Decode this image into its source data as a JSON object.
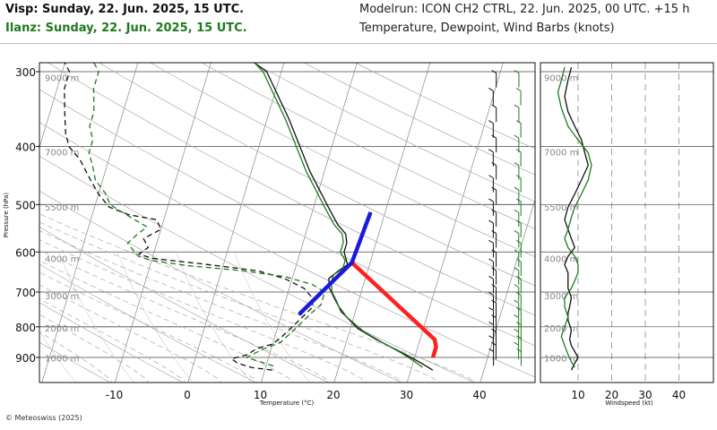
{
  "header": {
    "station1": "Visp: Sunday, 22. Jun. 2025, 15 UTC.",
    "station2": "Ilanz: Sunday, 22. Jun. 2025, 15 UTC.",
    "modelrun": "Modelrun: ICON CH2 CTRL, 22. Jun. 2025, 00 UTC. +15 h",
    "subtitle": "Temperature, Dewpoint, Wind Barbs (knots)"
  },
  "footer": {
    "copyright": "© Meteoswiss (2025)"
  },
  "colors": {
    "station1": "#111111",
    "station2": "#1e7a1e",
    "hodo_red": "#ff2020",
    "hodo_blue": "#1a1adc",
    "grid": "#999999"
  },
  "chart_data": [
    {
      "type": "line",
      "subtype": "skew-t",
      "xlabel": "Temperature (°C)",
      "ylabel": "Pressure (hPa)",
      "x_ticks": [
        "-10",
        "0",
        "10",
        "20",
        "30",
        "40"
      ],
      "x_tick_values": [
        -10,
        0,
        10,
        20,
        30,
        40
      ],
      "y_ticks": [
        "300",
        "400",
        "500",
        "600",
        "700",
        "800",
        "900"
      ],
      "y_tick_values": [
        300,
        400,
        500,
        600,
        700,
        800,
        900
      ],
      "altitude_labels": [
        "9000 m",
        "7000 m",
        "5500 m",
        "4000 m",
        "3000 m",
        "2000 m",
        "1000 m"
      ],
      "altitude_pressures": [
        307,
        408,
        505,
        615,
        710,
        803,
        902
      ],
      "xlim": [
        -20,
        48
      ],
      "ylim": [
        950,
        290
      ],
      "scale": "log-pressure",
      "series": [
        {
          "name": "Visp",
          "kind": "temperature",
          "color": "#111111",
          "dash": "solid",
          "points": [
            [
              33,
              945
            ],
            [
              31,
              918
            ],
            [
              29.5,
              900
            ],
            [
              27,
              872
            ],
            [
              24,
              840
            ],
            [
              21,
              805
            ],
            [
              19,
              770
            ],
            [
              17.5,
              740
            ],
            [
              16.5,
              715
            ],
            [
              15.5,
              690
            ],
            [
              15,
              665
            ],
            [
              16,
              645
            ],
            [
              17,
              630
            ],
            [
              16,
              600
            ],
            [
              16,
              580
            ],
            [
              15.5,
              560
            ],
            [
              14,
              540
            ],
            [
              12,
              505
            ],
            [
              8,
              440
            ],
            [
              3,
              360
            ],
            [
              -2,
              300
            ],
            [
              -4,
              290
            ]
          ]
        },
        {
          "name": "Ilanz",
          "kind": "temperature",
          "color": "#1e7a1e",
          "dash": "solid",
          "points": [
            [
              31.5,
              935
            ],
            [
              30,
              912
            ],
            [
              28,
              885
            ],
            [
              25,
              850
            ],
            [
              22,
              815
            ],
            [
              20,
              785
            ],
            [
              18,
              755
            ],
            [
              17,
              725
            ],
            [
              16,
              700
            ],
            [
              15.5,
              675
            ],
            [
              15.5,
              655
            ],
            [
              16.5,
              640
            ],
            [
              16.5,
              620
            ],
            [
              15.5,
              600
            ],
            [
              15.5,
              578
            ],
            [
              15,
              560
            ],
            [
              13.5,
              540
            ],
            [
              11.5,
              505
            ],
            [
              7.5,
              440
            ],
            [
              2.5,
              360
            ],
            [
              -2.5,
              300
            ],
            [
              -4,
              290
            ]
          ]
        },
        {
          "name": "Visp",
          "kind": "dewpoint",
          "color": "#111111",
          "dash": "6,4",
          "points": [
            [
              11,
              945
            ],
            [
              8,
              935
            ],
            [
              6,
              920
            ],
            [
              5,
              905
            ],
            [
              7,
              890
            ],
            [
              8,
              870
            ],
            [
              10,
              855
            ],
            [
              11,
              830
            ],
            [
              12,
              800
            ],
            [
              13,
              770
            ],
            [
              14,
              740
            ],
            [
              13.5,
              715
            ],
            [
              12,
              690
            ],
            [
              9,
              665
            ],
            [
              5,
              645
            ],
            [
              -3,
              628
            ],
            [
              -10,
              615
            ],
            [
              -12,
              605
            ],
            [
              -11,
              590
            ],
            [
              -12,
              570
            ],
            [
              -10,
              550
            ],
            [
              -11,
              530
            ],
            [
              -15,
              520
            ],
            [
              -18,
              505
            ],
            [
              -20,
              480
            ],
            [
              -22,
              450
            ],
            [
              -24,
              420
            ],
            [
              -26,
              400
            ],
            [
              -27,
              380
            ],
            [
              -28,
              350
            ],
            [
              -29,
              320
            ],
            [
              -29,
              300
            ],
            [
              -30,
              290
            ]
          ]
        },
        {
          "name": "Ilanz",
          "kind": "dewpoint",
          "color": "#1e7a1e",
          "dash": "6,4",
          "points": [
            [
              11,
              930
            ],
            [
              9,
              915
            ],
            [
              7,
              900
            ],
            [
              8,
              885
            ],
            [
              9,
              870
            ],
            [
              11,
              850
            ],
            [
              12,
              820
            ],
            [
              13,
              790
            ],
            [
              14,
              760
            ],
            [
              15,
              735
            ],
            [
              15,
              715
            ],
            [
              15,
              700
            ],
            [
              13,
              680
            ],
            [
              9,
              660
            ],
            [
              3,
              645
            ],
            [
              -5,
              632
            ],
            [
              -10,
              620
            ],
            [
              -12,
              610
            ],
            [
              -13,
              595
            ],
            [
              -14,
              580
            ],
            [
              -13,
              560
            ],
            [
              -12,
              545
            ],
            [
              -14,
              530
            ],
            [
              -16,
              515
            ],
            [
              -18,
              500
            ],
            [
              -19,
              480
            ],
            [
              -21,
              455
            ],
            [
              -22,
              430
            ],
            [
              -23,
              410
            ],
            [
              -23,
              390
            ],
            [
              -24,
              370
            ],
            [
              -24,
              350
            ],
            [
              -25,
              320
            ],
            [
              -25,
              300
            ],
            [
              -26,
              290
            ]
          ]
        }
      ],
      "hodograph": [
        {
          "name": "red",
          "color": "#ff2020",
          "points": [
            [
              32.5,
              900
            ],
            [
              32.5,
              865
            ],
            [
              32,
              840
            ],
            [
              17.5,
              625
            ]
          ]
        },
        {
          "name": "blue",
          "color": "#1a1adc",
          "points": [
            [
              17.5,
              625
            ],
            [
              12.5,
              760
            ],
            [
              17.5,
              625
            ],
            [
              18,
              515
            ]
          ]
        }
      ]
    },
    {
      "type": "line",
      "xlabel": "Windspeed (kt)",
      "x_ticks": [
        "10",
        "20",
        "30",
        "40"
      ],
      "x_tick_values": [
        10,
        20,
        30,
        40
      ],
      "xlim": [
        -8,
        48
      ],
      "altitude_labels": [
        "9000 m",
        "7000 m",
        "5500 m",
        "4000 m",
        "3000 m",
        "2000 m",
        "1000 m"
      ],
      "series": [
        {
          "name": "Visp",
          "color": "#111111",
          "points": [
            [
              8,
              945
            ],
            [
              9,
              920
            ],
            [
              10,
              900
            ],
            [
              9,
              880
            ],
            [
              8,
              860
            ],
            [
              7.5,
              840
            ],
            [
              8,
              810
            ],
            [
              7,
              780
            ],
            [
              7,
              760
            ],
            [
              7.5,
              740
            ],
            [
              8,
              715
            ],
            [
              7,
              690
            ],
            [
              7,
              670
            ],
            [
              7,
              650
            ],
            [
              6,
              630
            ],
            [
              7,
              610
            ],
            [
              9,
              590
            ],
            [
              8,
              570
            ],
            [
              7,
              550
            ],
            [
              6,
              530
            ],
            [
              7,
              505
            ],
            [
              9,
              480
            ],
            [
              11,
              455
            ],
            [
              13,
              430
            ],
            [
              12,
              410
            ],
            [
              11,
              390
            ],
            [
              9,
              370
            ],
            [
              7,
              350
            ],
            [
              6,
              330
            ],
            [
              7,
              310
            ],
            [
              8,
              295
            ]
          ]
        },
        {
          "name": "Ilanz",
          "color": "#1e7a1e",
          "points": [
            [
              9,
              935
            ],
            [
              8,
              915
            ],
            [
              7,
              890
            ],
            [
              6,
              860
            ],
            [
              5,
              830
            ],
            [
              6,
              800
            ],
            [
              7,
              770
            ],
            [
              6,
              740
            ],
            [
              6,
              715
            ],
            [
              8,
              690
            ],
            [
              9,
              670
            ],
            [
              10,
              650
            ],
            [
              10,
              630
            ],
            [
              9,
              610
            ],
            [
              7,
              590
            ],
            [
              6,
              570
            ],
            [
              7,
              550
            ],
            [
              8,
              525
            ],
            [
              9,
              505
            ],
            [
              11,
              480
            ],
            [
              13,
              455
            ],
            [
              14,
              430
            ],
            [
              13,
              410
            ],
            [
              10,
              390
            ],
            [
              7,
              370
            ],
            [
              5,
              345
            ],
            [
              4,
              325
            ],
            [
              5,
              310
            ],
            [
              6,
              295
            ]
          ]
        }
      ]
    }
  ]
}
